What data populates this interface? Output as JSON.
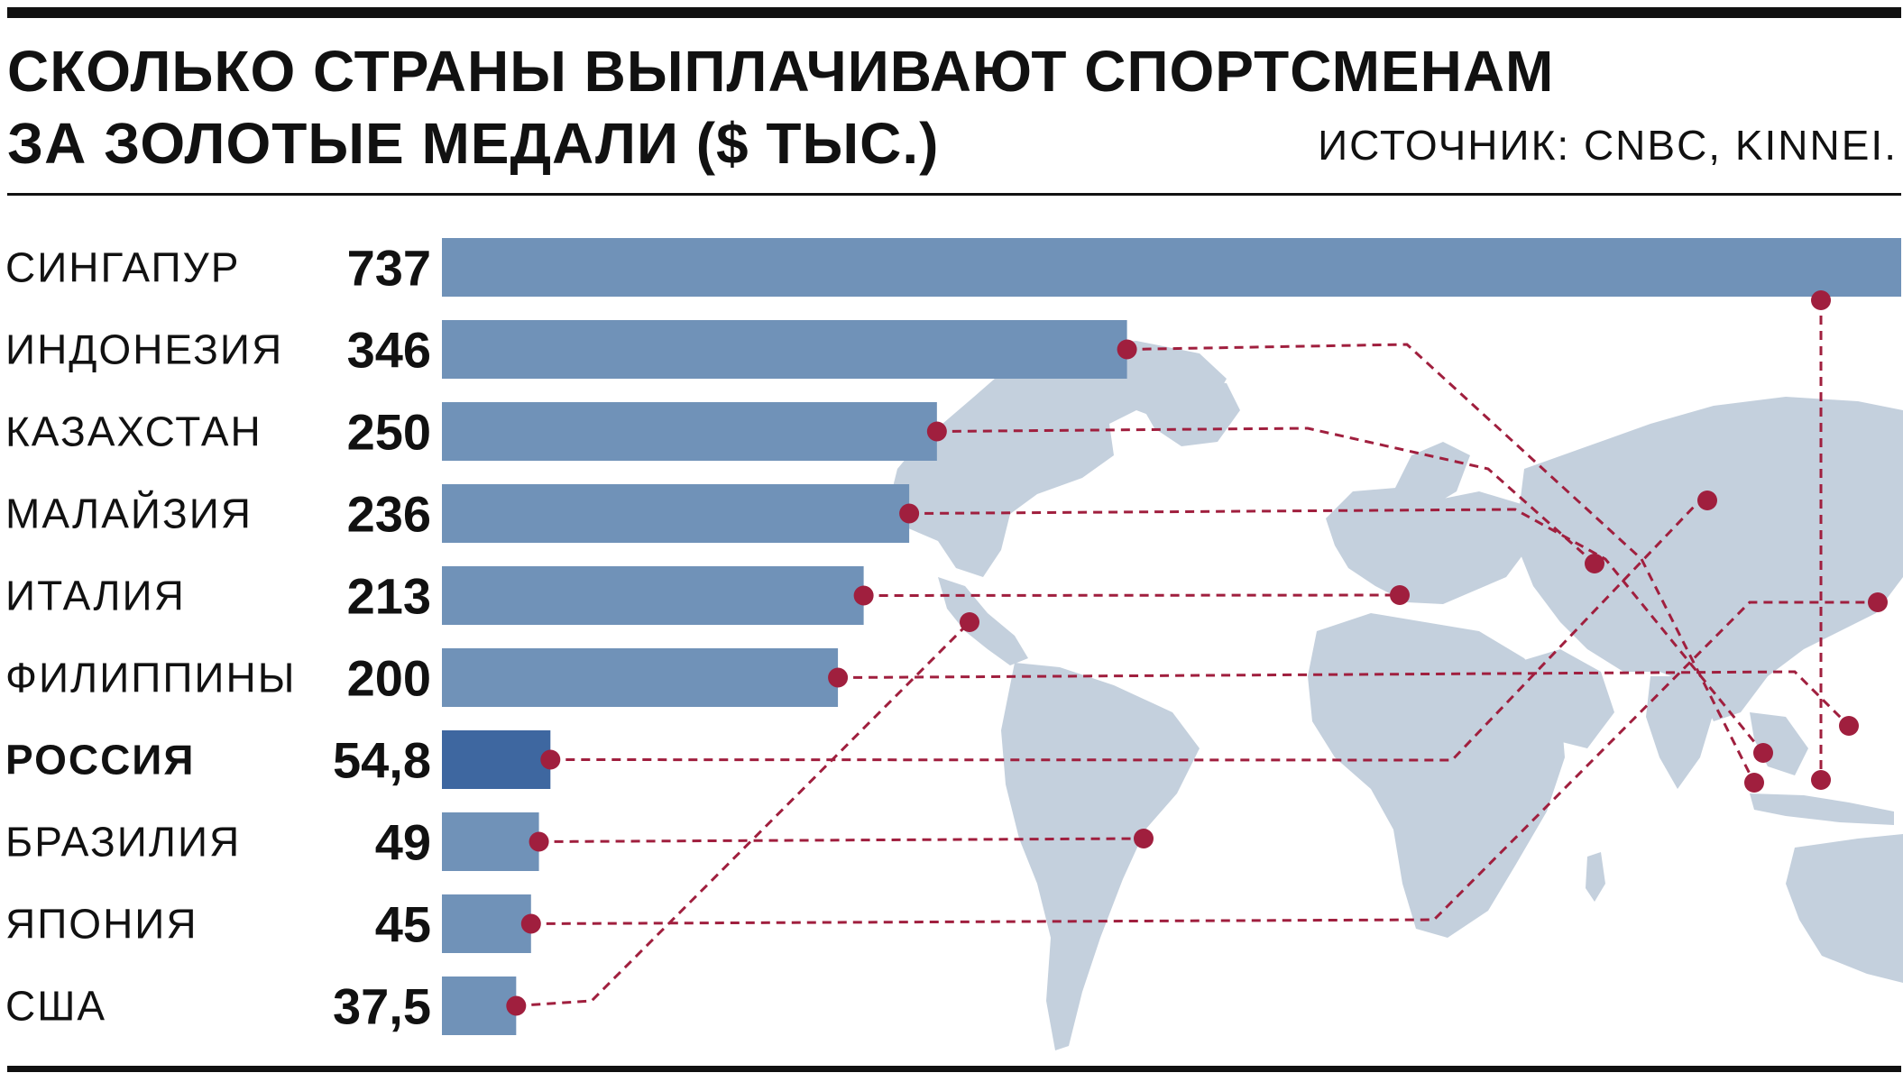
{
  "title_line1": "СКОЛЬКО СТРАНЫ ВЫПЛАЧИВАЮТ СПОРТСМЕНАМ",
  "title_line2": "ЗА ЗОЛОТЫЕ МЕДАЛИ ($ ТЫС.)",
  "source": "ИСТОЧНИК: CNBC, KINNEI.",
  "colors": {
    "bar": "#7092b8",
    "bar_highlight": "#3e67a0",
    "map": "#c4d0dd",
    "marker": "#a01f3e",
    "leader_line": "#a01f3e"
  },
  "chart_data": {
    "type": "bar",
    "orientation": "horizontal",
    "title": "СКОЛЬКО СТРАНЫ ВЫПЛАЧИВАЮТ СПОРТСМЕНАМ ЗА ЗОЛОТЫЕ МЕДАЛИ ($ ТЫС.)",
    "categories": [
      "СИНГАПУР",
      "ИНДОНЕЗИЯ",
      "КАЗАХСТАН",
      "МАЛАЙЗИЯ",
      "ИТАЛИЯ",
      "ФИЛИППИНЫ",
      "РОССИЯ",
      "БРАЗИЛИЯ",
      "ЯПОНИЯ",
      "США"
    ],
    "values": [
      737,
      346,
      250,
      236,
      213,
      200,
      54.8,
      49,
      45,
      37.5
    ],
    "value_labels": [
      "737",
      "346",
      "250",
      "236",
      "213",
      "200",
      "54,8",
      "49",
      "45",
      "37,5"
    ],
    "highlight": "РОССИЯ",
    "xlim": [
      0,
      737
    ],
    "grid": false,
    "legend": "none",
    "background": "world map with dashed leader lines from each bar to the country location"
  }
}
